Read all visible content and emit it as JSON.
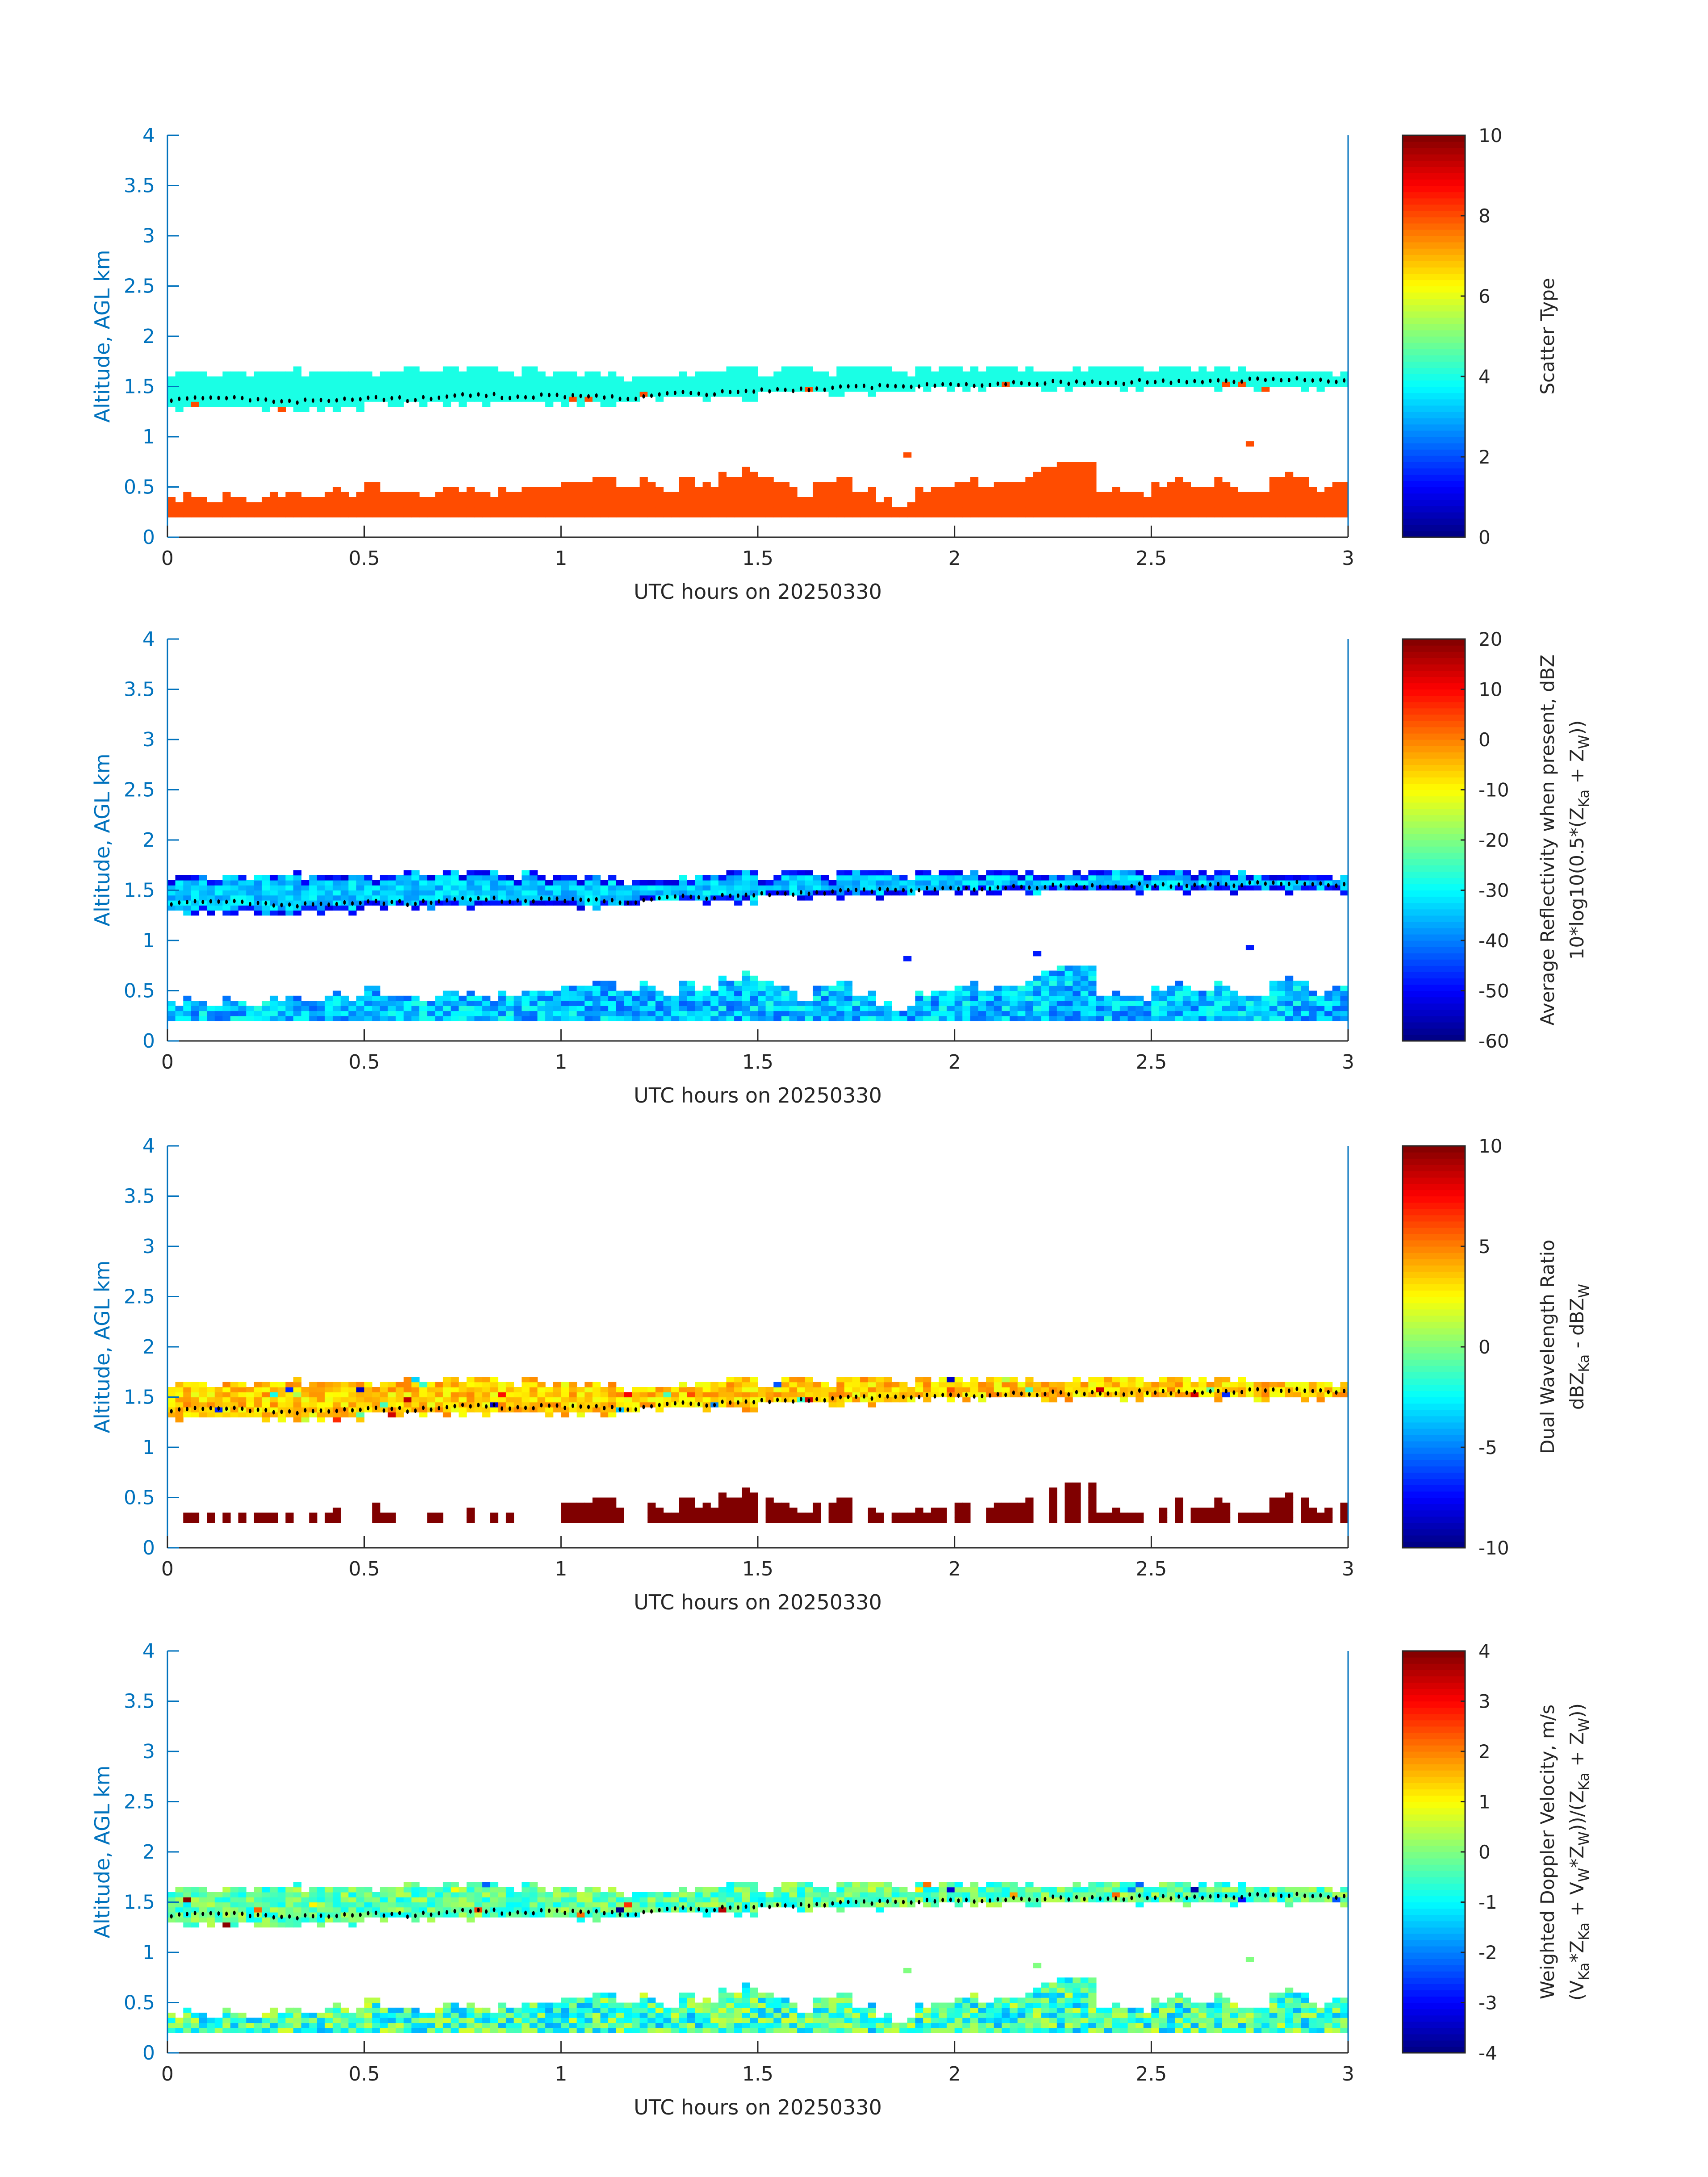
{
  "chart_common": {
    "type": "heatmap",
    "colormap": "jet",
    "xlabel": "UTC hours on 20250330",
    "ylabel": "Altitude, AGL km",
    "xlim": [
      0,
      3
    ],
    "ylim": [
      0,
      4
    ],
    "x_ticks": [
      "0",
      "0.5",
      "1",
      "1.5",
      "2",
      "2.5",
      "3"
    ],
    "y_ticks": [
      "0",
      "0.5",
      "1",
      "1.5",
      "2",
      "2.5",
      "3",
      "3.5",
      "4"
    ],
    "time_step_h": 0.05,
    "lower_layer_base_km": 0.2,
    "lower_layer_top_km": [
      0.35,
      0.38,
      0.35,
      0.4,
      0.35,
      0.38,
      0.45,
      0.4,
      0.45,
      0.4,
      0.5,
      0.45,
      0.45,
      0.4,
      0.5,
      0.45,
      0.4,
      0.45,
      0.5,
      0.5,
      0.55,
      0.55,
      0.6,
      0.5,
      0.55,
      0.45,
      0.55,
      0.5,
      0.6,
      0.65,
      0.6,
      0.5,
      0.4,
      0.55,
      0.6,
      0.45,
      0.35,
      0.3,
      0.45,
      0.45,
      0.55,
      0.5,
      0.55,
      0.55,
      0.65,
      0.7,
      0.75,
      0.45,
      0.45,
      0.4,
      0.5,
      0.55,
      0.5,
      0.55,
      0.45,
      0.45,
      0.6,
      0.55,
      0.45,
      0.55
    ],
    "upper_layer_base_km": [
      1.3,
      1.3,
      1.3,
      1.3,
      1.3,
      1.3,
      1.3,
      1.3,
      1.3,
      1.3,
      1.35,
      1.35,
      1.35,
      1.35,
      1.35,
      1.35,
      1.35,
      1.35,
      1.35,
      1.35,
      1.35,
      1.35,
      1.35,
      1.35,
      1.4,
      1.4,
      1.4,
      1.4,
      1.4,
      1.4,
      1.45,
      1.45,
      1.45,
      1.45,
      1.45,
      1.45,
      1.45,
      1.45,
      1.5,
      1.5,
      1.5,
      1.5,
      1.5,
      1.5,
      1.5,
      1.5,
      1.5,
      1.5,
      1.5,
      1.5,
      1.5,
      1.5,
      1.5,
      1.5,
      1.5,
      1.5,
      1.5,
      1.5,
      1.5,
      1.5
    ],
    "upper_layer_top_km": [
      1.65,
      1.65,
      1.6,
      1.65,
      1.65,
      1.65,
      1.7,
      1.65,
      1.65,
      1.65,
      1.65,
      1.65,
      1.7,
      1.65,
      1.7,
      1.7,
      1.7,
      1.65,
      1.7,
      1.65,
      1.65,
      1.65,
      1.65,
      1.6,
      1.6,
      1.6,
      1.65,
      1.65,
      1.7,
      1.7,
      1.65,
      1.7,
      1.7,
      1.65,
      1.7,
      1.7,
      1.7,
      1.65,
      1.7,
      1.7,
      1.7,
      1.7,
      1.7,
      1.7,
      1.7,
      1.65,
      1.7,
      1.7,
      1.7,
      1.7,
      1.7,
      1.7,
      1.7,
      1.7,
      1.7,
      1.65,
      1.65,
      1.65,
      1.65,
      1.65
    ],
    "cloud_base_line_km": [
      1.37,
      1.38,
      1.38,
      1.39,
      1.37,
      1.36,
      1.35,
      1.36,
      1.37,
      1.38,
      1.38,
      1.38,
      1.37,
      1.38,
      1.41,
      1.42,
      1.41,
      1.4,
      1.4,
      1.41,
      1.4,
      1.4,
      1.4,
      1.39,
      1.41,
      1.43,
      1.44,
      1.43,
      1.44,
      1.45,
      1.46,
      1.47,
      1.48,
      1.48,
      1.49,
      1.5,
      1.5,
      1.51,
      1.51,
      1.52,
      1.52,
      1.52,
      1.53,
      1.53,
      1.53,
      1.54,
      1.54,
      1.54,
      1.54,
      1.55,
      1.55,
      1.55,
      1.55,
      1.56,
      1.56,
      1.57,
      1.57,
      1.57,
      1.56,
      1.56
    ],
    "isolated_echoes": [
      [
        1.87,
        0.82
      ],
      [
        2.74,
        0.93
      ],
      [
        2.2,
        0.87
      ]
    ]
  },
  "chart_data": [
    {
      "type": "heatmap",
      "clim": [
        0,
        10
      ],
      "colorbar_ticks": [
        "0",
        "2",
        "4",
        "6",
        "8",
        "10"
      ],
      "colorbar_label_lines": [
        [
          {
            "t": "Scatter Type"
          }
        ]
      ],
      "upper_value": 4,
      "upper_spread": 0,
      "upper_alt_value": 8,
      "upper_alt_fraction": 0.08,
      "lower_value": 8,
      "lower_spread": 0,
      "lower_coverage": [
        1,
        1,
        1,
        1,
        1,
        1
      ]
    },
    {
      "type": "heatmap",
      "clim": [
        -60,
        20
      ],
      "colorbar_ticks": [
        "20",
        "10",
        "0",
        "-10",
        "-20",
        "-30",
        "-40",
        "-50",
        "-60"
      ],
      "colorbar_label_lines": [
        [
          {
            "t": "Average Reflectivity when present, dBZ"
          }
        ],
        [
          {
            "t": "10*log10(0.5*(Z"
          },
          {
            "sub": "Ka"
          },
          {
            "t": " + Z"
          },
          {
            "sub": "W"
          },
          {
            "t": "))"
          }
        ]
      ],
      "upper_value": -34,
      "upper_spread": 5,
      "edge_value": -50,
      "lower_value": -35,
      "lower_spread": 8,
      "lower_coverage": [
        1,
        1,
        1,
        1,
        1,
        1
      ]
    },
    {
      "type": "heatmap",
      "clim": [
        -10,
        10
      ],
      "colorbar_ticks": [
        "10",
        "5",
        "0",
        "-5",
        "-10"
      ],
      "colorbar_label_lines": [
        [
          {
            "t": "Dual Wavelength Ratio"
          }
        ],
        [
          {
            "t": "dBZ"
          },
          {
            "sub": "Ka"
          },
          {
            "t": " - dBZ"
          },
          {
            "sub": "W"
          }
        ]
      ],
      "upper_value": 3.5,
      "upper_spread": 1.5,
      "lower_value": 10,
      "lower_spread": 0,
      "lower_coverage": [
        0.3,
        0.35,
        0.85,
        0.8,
        0.7,
        0.65
      ]
    },
    {
      "type": "heatmap",
      "clim": [
        -4,
        4
      ],
      "colorbar_ticks": [
        "4",
        "3",
        "2",
        "1",
        "0",
        "-1",
        "-2",
        "-3",
        "-4"
      ],
      "colorbar_label_lines": [
        [
          {
            "t": "Weighted Doppler Velocity, m/s"
          }
        ],
        [
          {
            "t": "(V"
          },
          {
            "sub": "Ka"
          },
          {
            "t": "*Z"
          },
          {
            "sub": "Ka"
          },
          {
            "t": " + V"
          },
          {
            "sub": "W"
          },
          {
            "t": "*Z"
          },
          {
            "sub": "W"
          },
          {
            "t": "))/(Z"
          },
          {
            "sub": "Ka"
          },
          {
            "t": " + Z"
          },
          {
            "sub": "W"
          },
          {
            "t": "))"
          }
        ]
      ],
      "upper_value": -0.3,
      "upper_spread": 0.8,
      "lower_value": -0.5,
      "lower_spread": 1.2,
      "lower_coverage": [
        1,
        1,
        1,
        1,
        1,
        1
      ]
    }
  ]
}
